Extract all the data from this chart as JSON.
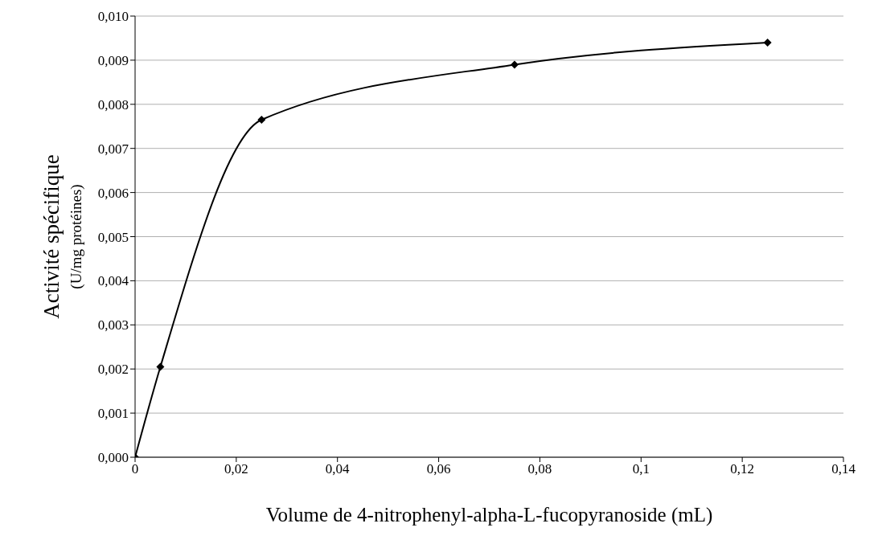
{
  "chart_data": {
    "type": "line",
    "xlabel": "Volume de 4-nitrophenyl-alpha-L-fucopyranoside  (mL)",
    "ylabel": "Activité spécifique\n(U/mg protéines)",
    "x": [
      0,
      0.005,
      0.025,
      0.075,
      0.125
    ],
    "series": [
      {
        "color": "#000000",
        "values": [
          0,
          0.00205,
          0.00765,
          0.0089,
          0.0094
        ]
      }
    ],
    "xlim": [
      0,
      0.14
    ],
    "xticks": [
      0,
      {
        "value": 0.02,
        "label": "0,02"
      },
      {
        "value": 0.04,
        "label": "0,04"
      },
      {
        "value": 0.06,
        "label": "0,06"
      },
      {
        "value": 0.08,
        "label": "0,08"
      },
      {
        "value": 0.1,
        "label": "0,1"
      },
      {
        "value": 0.12,
        "label": "0,12"
      },
      {
        "value": 0.14,
        "label": "0,14"
      }
    ],
    "ylim": [
      0,
      0.01
    ],
    "yticks": [
      {
        "value": 0,
        "label": "0,000"
      },
      {
        "value": 0.001,
        "label": "0,001"
      },
      {
        "value": 0.002,
        "label": "0,002"
      },
      {
        "value": 0.003,
        "label": "0,003"
      },
      {
        "value": 0.004,
        "label": "0,004"
      },
      {
        "value": 0.005,
        "label": "0,005"
      },
      {
        "value": 0.006,
        "label": "0,006"
      },
      {
        "value": 0.007,
        "label": "0,007"
      },
      {
        "value": 0.008,
        "label": "0,008"
      },
      {
        "value": 0.009,
        "label": "0,009"
      },
      {
        "value": 0.01,
        "label": "0,010"
      }
    ],
    "grid": "y",
    "marker": "diamond",
    "line_style": "solid",
    "legend": false
  }
}
